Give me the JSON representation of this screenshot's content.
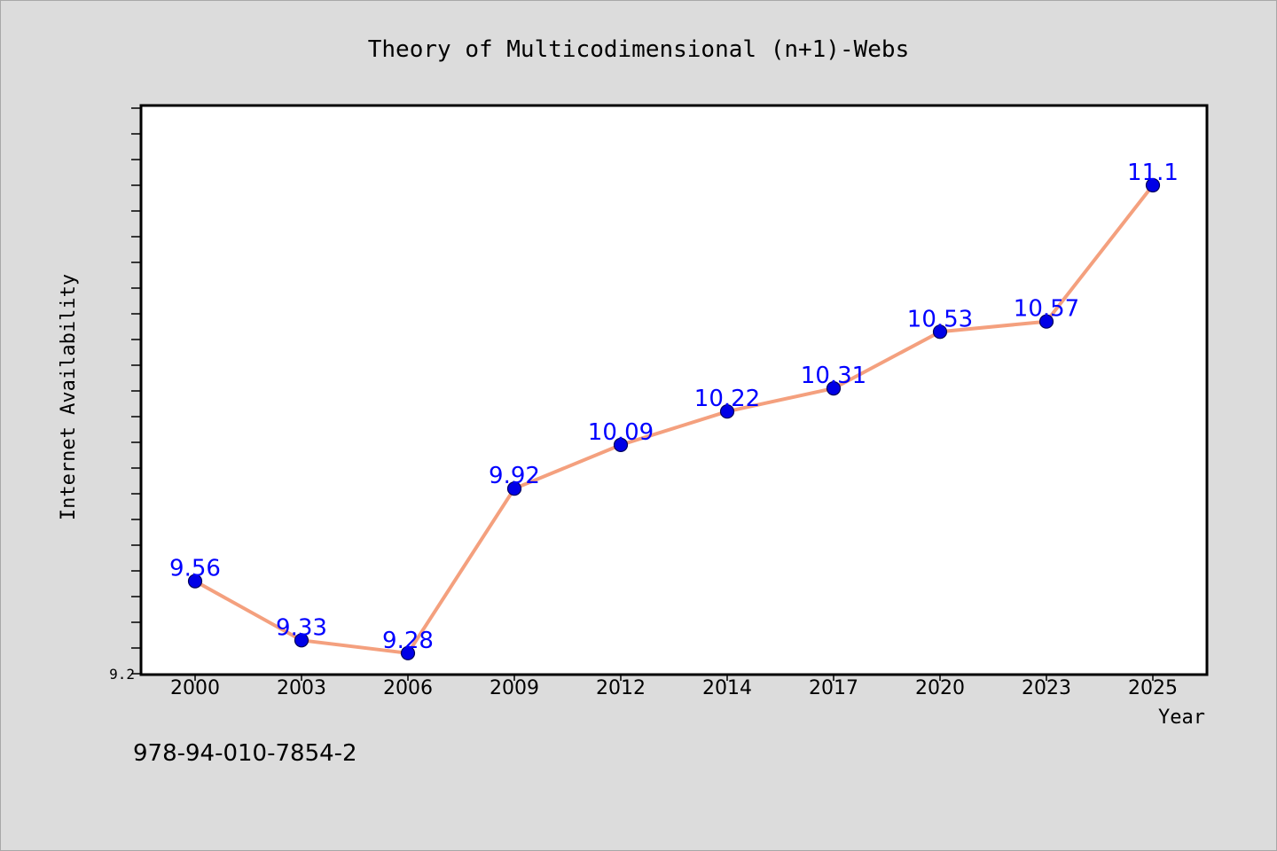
{
  "chart_data": {
    "type": "line",
    "title": "Theory of Multicodimensional (n+1)-Webs",
    "xlabel": "Year",
    "ylabel": "Internet Availability",
    "categories": [
      "2000",
      "2003",
      "2006",
      "2009",
      "2012",
      "2014",
      "2017",
      "2020",
      "2023",
      "2025"
    ],
    "values": [
      9.56,
      9.33,
      9.28,
      9.92,
      10.09,
      10.22,
      10.31,
      10.53,
      10.57,
      11.1
    ],
    "data_labels": [
      "9.56",
      "9.33",
      "9.28",
      "9.92",
      "10.09",
      "10.22",
      "10.31",
      "10.53",
      "10.57",
      "11.1"
    ],
    "ylim": [
      9.2,
      11.4
    ],
    "y_tick_labels": [
      "9.2"
    ],
    "grid": false,
    "colors": {
      "line": "#f4a07e",
      "marker": "#0000e6",
      "label": "#0000ff"
    }
  },
  "footer": {
    "code": "978-94-010-7854-2"
  }
}
